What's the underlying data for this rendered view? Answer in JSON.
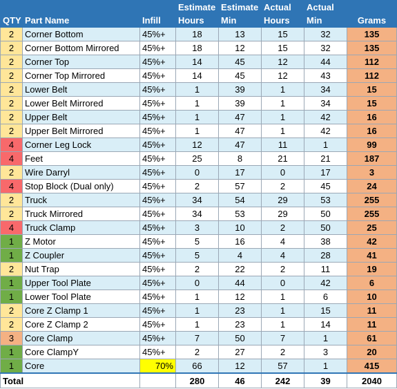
{
  "headers": {
    "qty": "QTY",
    "part_name": "Part Name",
    "infill": "Infill",
    "est_hours_top": "Estimate",
    "est_hours_bottom": "Hours",
    "est_min_top": "Estimate",
    "est_min_bottom": "Min",
    "act_hours_top": "Actual",
    "act_hours_bottom": "Hours",
    "act_min_top": "Actual",
    "act_min_bottom": "Min",
    "grams": "Grams"
  },
  "rows": [
    {
      "qty": "2",
      "name": "Corner Bottom",
      "infill": "45%+",
      "eh": "18",
      "em": "13",
      "ah": "15",
      "am": "32",
      "g": "135"
    },
    {
      "qty": "2",
      "name": "Corner Bottom Mirrored",
      "infill": "45%+",
      "eh": "18",
      "em": "12",
      "ah": "15",
      "am": "32",
      "g": "135"
    },
    {
      "qty": "2",
      "name": "Corner Top",
      "infill": "45%+",
      "eh": "14",
      "em": "45",
      "ah": "12",
      "am": "44",
      "g": "112"
    },
    {
      "qty": "2",
      "name": "Corner Top Mirrored",
      "infill": "45%+",
      "eh": "14",
      "em": "45",
      "ah": "12",
      "am": "43",
      "g": "112"
    },
    {
      "qty": "2",
      "name": "Lower Belt",
      "infill": "45%+",
      "eh": "1",
      "em": "39",
      "ah": "1",
      "am": "34",
      "g": "15"
    },
    {
      "qty": "2",
      "name": "Lower Belt Mirrored",
      "infill": "45%+",
      "eh": "1",
      "em": "39",
      "ah": "1",
      "am": "34",
      "g": "15"
    },
    {
      "qty": "2",
      "name": "Upper Belt",
      "infill": "45%+",
      "eh": "1",
      "em": "47",
      "ah": "1",
      "am": "42",
      "g": "16"
    },
    {
      "qty": "2",
      "name": "Upper Belt Mirrored",
      "infill": "45%+",
      "eh": "1",
      "em": "47",
      "ah": "1",
      "am": "42",
      "g": "16"
    },
    {
      "qty": "4",
      "name": "Corner Leg Lock",
      "infill": "45%+",
      "eh": "12",
      "em": "47",
      "ah": "11",
      "am": "1",
      "g": "99"
    },
    {
      "qty": "4",
      "name": "Feet",
      "infill": "45%+",
      "eh": "25",
      "em": "8",
      "ah": "21",
      "am": "21",
      "g": "187"
    },
    {
      "qty": "2",
      "name": "Wire Darryl",
      "infill": "45%+",
      "eh": "0",
      "em": "17",
      "ah": "0",
      "am": "17",
      "g": "3"
    },
    {
      "qty": "4",
      "name": "Stop Block (Dual only)",
      "infill": "45%+",
      "eh": "2",
      "em": "57",
      "ah": "2",
      "am": "45",
      "g": "24"
    },
    {
      "qty": "2",
      "name": "Truck",
      "infill": "45%+",
      "eh": "34",
      "em": "54",
      "ah": "29",
      "am": "53",
      "g": "255"
    },
    {
      "qty": "2",
      "name": "Truck Mirrored",
      "infill": "45%+",
      "eh": "34",
      "em": "53",
      "ah": "29",
      "am": "50",
      "g": "255"
    },
    {
      "qty": "4",
      "name": "Truck Clamp",
      "infill": "45%+",
      "eh": "3",
      "em": "10",
      "ah": "2",
      "am": "50",
      "g": "25"
    },
    {
      "qty": "1",
      "name": "Z Motor",
      "infill": "45%+",
      "eh": "5",
      "em": "16",
      "ah": "4",
      "am": "38",
      "g": "42"
    },
    {
      "qty": "1",
      "name": "Z Coupler",
      "infill": "45%+",
      "eh": "5",
      "em": "4",
      "ah": "4",
      "am": "28",
      "g": "41"
    },
    {
      "qty": "2",
      "name": "Nut Trap",
      "infill": "45%+",
      "eh": "2",
      "em": "22",
      "ah": "2",
      "am": "11",
      "g": "19"
    },
    {
      "qty": "1",
      "name": "Upper Tool Plate",
      "infill": "45%+",
      "eh": "0",
      "em": "44",
      "ah": "0",
      "am": "42",
      "g": "6"
    },
    {
      "qty": "1",
      "name": "Lower Tool Plate",
      "infill": "45%+",
      "eh": "1",
      "em": "12",
      "ah": "1",
      "am": "6",
      "g": "10"
    },
    {
      "qty": "2",
      "name": "Core Z Clamp 1",
      "infill": "45%+",
      "eh": "1",
      "em": "23",
      "ah": "1",
      "am": "15",
      "g": "11"
    },
    {
      "qty": "2",
      "name": "Core Z Clamp 2",
      "infill": "45%+",
      "eh": "1",
      "em": "23",
      "ah": "1",
      "am": "14",
      "g": "11"
    },
    {
      "qty": "3",
      "name": "Core Clamp",
      "infill": "45%+",
      "eh": "7",
      "em": "50",
      "ah": "7",
      "am": "1",
      "g": "61"
    },
    {
      "qty": "1",
      "name": "Core ClampY",
      "infill": "45%+",
      "eh": "2",
      "em": "27",
      "ah": "2",
      "am": "3",
      "g": "20"
    },
    {
      "qty": "1",
      "name": "Core",
      "infill": "70%",
      "eh": "66",
      "em": "12",
      "ah": "57",
      "am": "1",
      "g": "415",
      "highlight_infill": true
    }
  ],
  "totals": {
    "label": "Total",
    "eh": "280",
    "em": "46",
    "ah": "242",
    "am": "39",
    "g": "2040"
  },
  "colors": {
    "header": "#2f75b5",
    "row_band": "#d9eef7",
    "grams": "#f4b183",
    "qty_1": "#70ad47",
    "qty_2": "#ffe699",
    "qty_3": "#f4b183",
    "qty_4": "#f8696b",
    "highlight": "#ffff00"
  }
}
